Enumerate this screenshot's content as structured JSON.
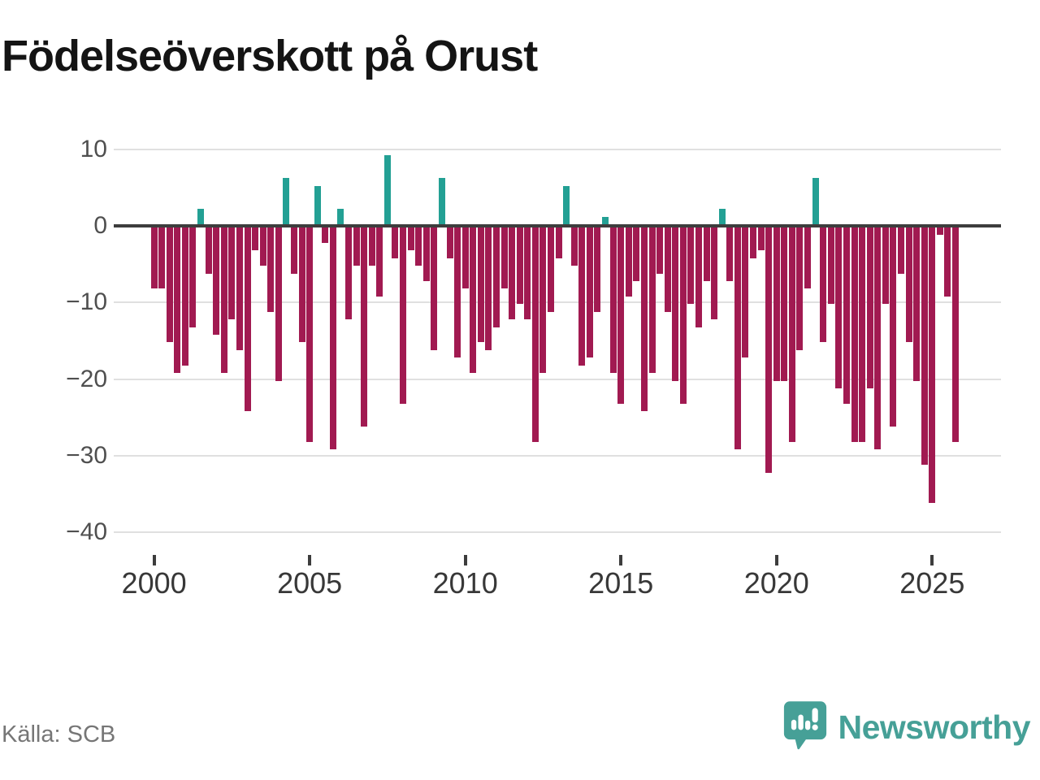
{
  "title": "Födelseöverskott på Orust",
  "source": "Källa: SCB",
  "branding": {
    "logo_text": "Newsworthy",
    "logo_icon": "speech-bubble-bar-chart"
  },
  "colors": {
    "negative_bar": "#a11a51",
    "positive_bar": "#23a094",
    "zero_line": "#3d3d3d",
    "gridline": "#e0e0e0",
    "brand_teal": "#46a097"
  },
  "chart_data": {
    "type": "bar",
    "title": "Födelseöverskott på Orust",
    "xlabel": "",
    "ylabel": "",
    "ylim": [
      -40,
      10
    ],
    "grid": "horizontal",
    "legend": "none",
    "frequency": "quarterly",
    "start_year": 2000,
    "start_quarter": 1,
    "y_ticks": [
      10,
      0,
      -10,
      -20,
      -30,
      -40
    ],
    "x_ticks": [
      2000,
      2005,
      2010,
      2015,
      2020,
      2025
    ],
    "values": [
      -8,
      -8,
      -15,
      -19,
      -18,
      -13,
      2,
      -6,
      -14,
      -19,
      -12,
      -16,
      -24,
      -3,
      -5,
      -11,
      -20,
      6,
      -6,
      -15,
      -28,
      5,
      -2,
      -29,
      2,
      -12,
      -5,
      -26,
      -5,
      -9,
      9,
      -4,
      -23,
      -3,
      -5,
      -7,
      -16,
      6,
      -4,
      -17,
      -8,
      -19,
      -15,
      -16,
      -13,
      -8,
      -12,
      -10,
      -12,
      -28,
      -19,
      -11,
      -4,
      5,
      -5,
      -18,
      -17,
      -11,
      1,
      -19,
      -23,
      -9,
      -7,
      -24,
      -19,
      -6,
      -11,
      -20,
      -23,
      -10,
      -13,
      -7,
      -12,
      2,
      -7,
      -29,
      -17,
      -4,
      -3,
      -32,
      -20,
      -20,
      -28,
      -16,
      -8,
      6,
      -15,
      -10,
      -21,
      -23,
      -28,
      -28,
      -21,
      -29,
      -10,
      -26,
      -6,
      -15,
      -20,
      -31,
      -36,
      -1,
      -9,
      -28
    ]
  }
}
